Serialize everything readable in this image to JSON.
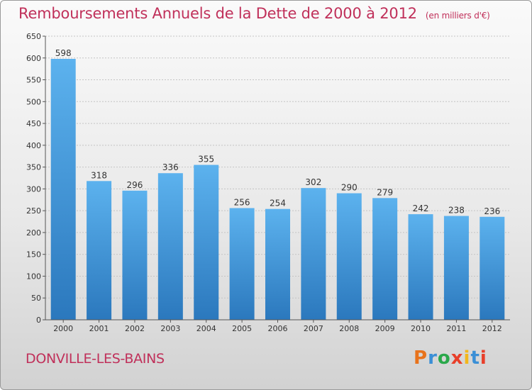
{
  "title": "Remboursements Annuels de la Dette de 2000 à 2012",
  "unit": "(en milliers d'€)",
  "commune": "DONVILLE-LES-BAINS",
  "logo": {
    "letters": [
      "P",
      "r",
      "o",
      "x",
      "i",
      "t",
      "i"
    ],
    "colors": [
      "#e8731c",
      "#3a8fd6",
      "#2aa84a",
      "#e83f2a",
      "#f2b71c",
      "#3a8fd6",
      "#e83f2a"
    ]
  },
  "chart_data": {
    "type": "bar",
    "title": "Remboursements Annuels de la Dette de 2000 à 2012",
    "ylabel": "",
    "xlabel": "",
    "ylim": [
      0,
      650
    ],
    "yticks": [
      0,
      50,
      100,
      150,
      200,
      250,
      300,
      350,
      400,
      450,
      500,
      550,
      600,
      650
    ],
    "grid": true,
    "categories": [
      "2000",
      "2001",
      "2002",
      "2003",
      "2004",
      "2005",
      "2006",
      "2007",
      "2008",
      "2009",
      "2010",
      "2011",
      "2012"
    ],
    "values": [
      598,
      318,
      296,
      336,
      355,
      256,
      254,
      302,
      290,
      279,
      242,
      238,
      236
    ],
    "bar_color": "#4a9ee0"
  }
}
